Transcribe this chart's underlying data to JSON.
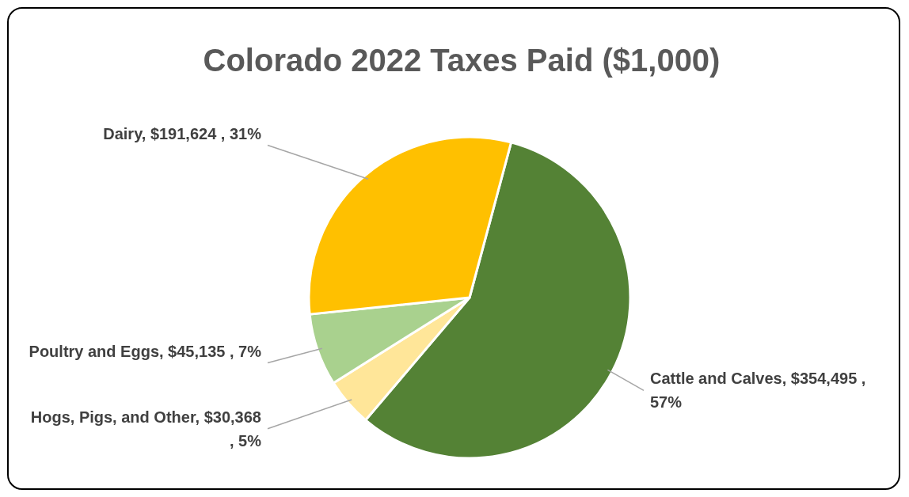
{
  "chart_data": {
    "type": "pie",
    "title": "Colorado 2022 Taxes Paid ($1,000)",
    "categories": [
      "Cattle and Calves",
      "Hogs, Pigs, and Other",
      "Poultry and Eggs",
      "Dairy"
    ],
    "values": [
      354495,
      30368,
      45135,
      191624
    ],
    "colors": [
      "#548235",
      "#ffe699",
      "#a9d18e",
      "#ffc000"
    ],
    "value_labels": [
      "$354,495 , 57%",
      "$30,368 , 5%",
      "$45,135 , 7%",
      "$191,624 , 31%"
    ]
  }
}
